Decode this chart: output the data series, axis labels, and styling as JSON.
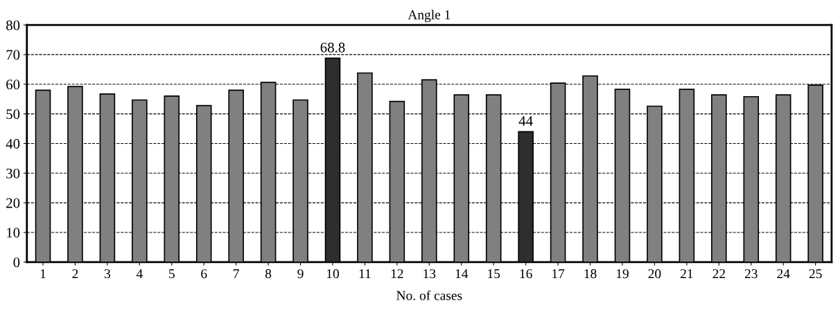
{
  "chart_data": {
    "type": "bar",
    "title": "Angle 1",
    "xlabel": "No. of cases",
    "categories": [
      "1",
      "2",
      "3",
      "4",
      "5",
      "6",
      "7",
      "8",
      "9",
      "10",
      "11",
      "12",
      "13",
      "14",
      "15",
      "16",
      "17",
      "18",
      "19",
      "20",
      "21",
      "22",
      "23",
      "24",
      "25"
    ],
    "values": [
      58.0,
      59.2,
      56.7,
      54.7,
      56.0,
      52.8,
      58.0,
      60.6,
      54.7,
      68.8,
      63.8,
      54.2,
      61.5,
      56.4,
      56.4,
      44,
      60.4,
      62.8,
      58.3,
      52.6,
      58.3,
      56.4,
      55.8,
      56.4,
      59.7
    ],
    "colors": [
      "#808080",
      "#808080",
      "#808080",
      "#808080",
      "#808080",
      "#808080",
      "#808080",
      "#808080",
      "#808080",
      "#2e2e2e",
      "#808080",
      "#808080",
      "#808080",
      "#808080",
      "#808080",
      "#2e2e2e",
      "#808080",
      "#808080",
      "#808080",
      "#808080",
      "#808080",
      "#808080",
      "#808080",
      "#808080",
      "#808080"
    ],
    "value_labels": [
      null,
      null,
      null,
      null,
      null,
      null,
      null,
      null,
      null,
      "68.8",
      null,
      null,
      null,
      null,
      null,
      "44",
      null,
      null,
      null,
      null,
      null,
      null,
      null,
      null,
      null
    ],
    "ylim": [
      0,
      80
    ],
    "yticks": [
      0,
      10,
      20,
      30,
      40,
      50,
      60,
      70,
      80
    ],
    "grid": "y"
  }
}
